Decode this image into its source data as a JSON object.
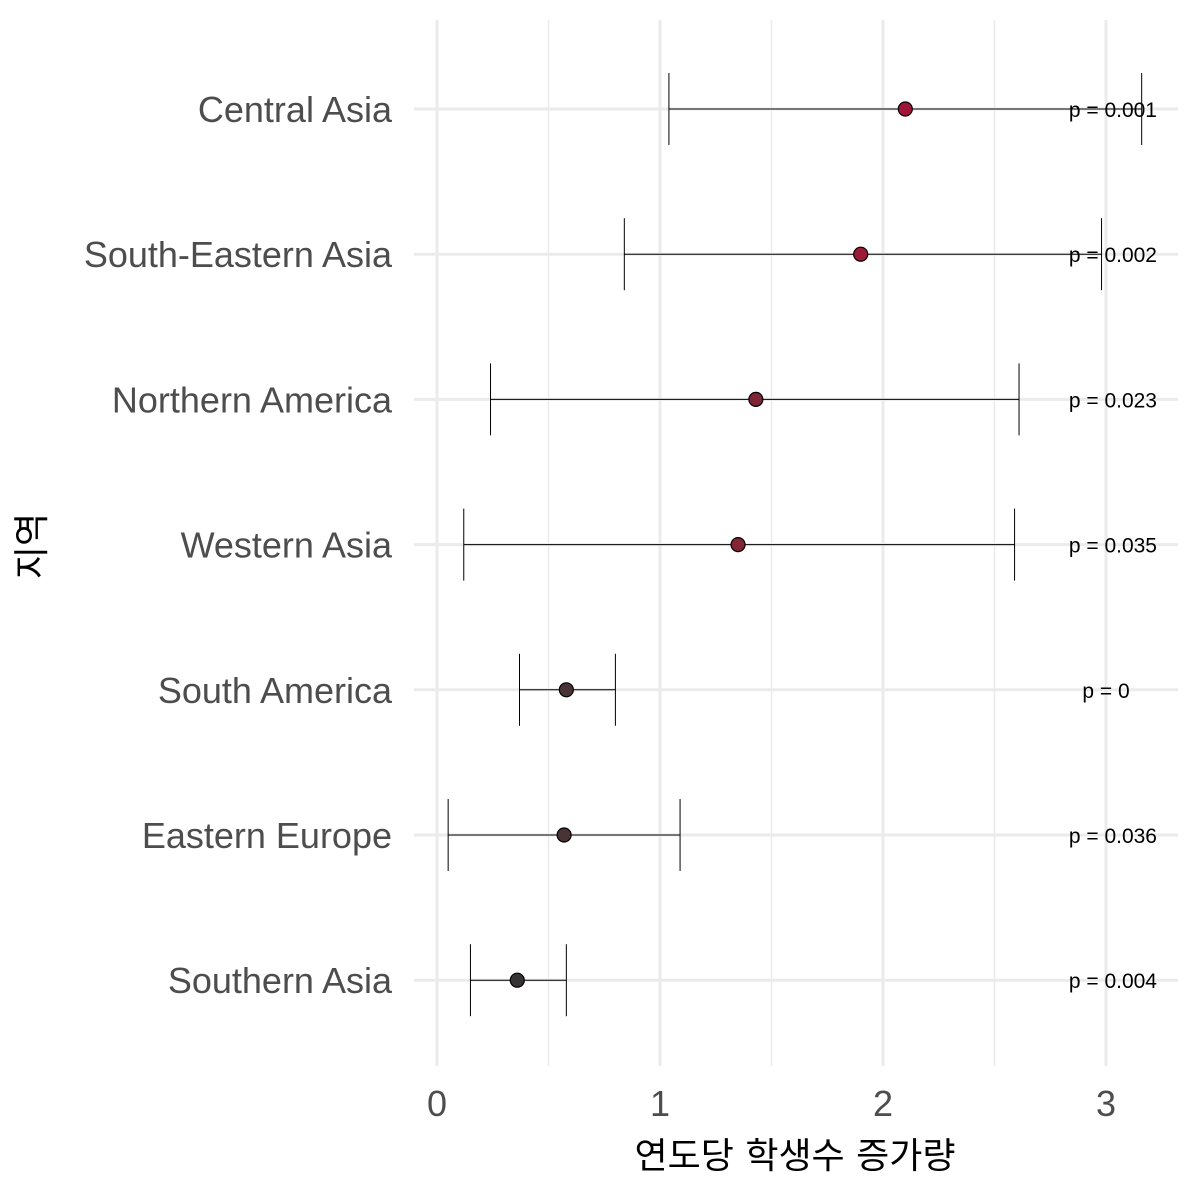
{
  "chart_data": {
    "type": "scatter",
    "subtype": "forest-plot",
    "xlabel": "연도당 학생수 증가량",
    "ylabel": "지역",
    "xlim": [
      -0.1,
      3.3
    ],
    "x_ticks": [
      0,
      1,
      2,
      3
    ],
    "grid": true,
    "legend": "none",
    "rows": [
      {
        "region": "Central Asia",
        "estimate": 2.1,
        "lower": 1.04,
        "upper": 3.16,
        "p_label": "p = 0.001",
        "color": "#a0163a"
      },
      {
        "region": "South-Eastern Asia",
        "estimate": 1.9,
        "lower": 0.84,
        "upper": 2.98,
        "p_label": "p = 0.002",
        "color": "#9c1b37"
      },
      {
        "region": "Northern America",
        "estimate": 1.43,
        "lower": 0.24,
        "upper": 2.61,
        "p_label": "p = 0.023",
        "color": "#7c2535"
      },
      {
        "region": "Western Asia",
        "estimate": 1.35,
        "lower": 0.12,
        "upper": 2.59,
        "p_label": "p = 0.035",
        "color": "#842536"
      },
      {
        "region": "South America",
        "estimate": 0.58,
        "lower": 0.37,
        "upper": 0.8,
        "p_label": "p = 0",
        "color": "#4a3335"
      },
      {
        "region": "Eastern Europe",
        "estimate": 0.57,
        "lower": 0.05,
        "upper": 1.09,
        "p_label": "p = 0.036",
        "color": "#4a3335"
      },
      {
        "region": "Southern Asia",
        "estimate": 0.36,
        "lower": 0.15,
        "upper": 0.58,
        "p_label": "p = 0.004",
        "color": "#363334"
      }
    ]
  }
}
